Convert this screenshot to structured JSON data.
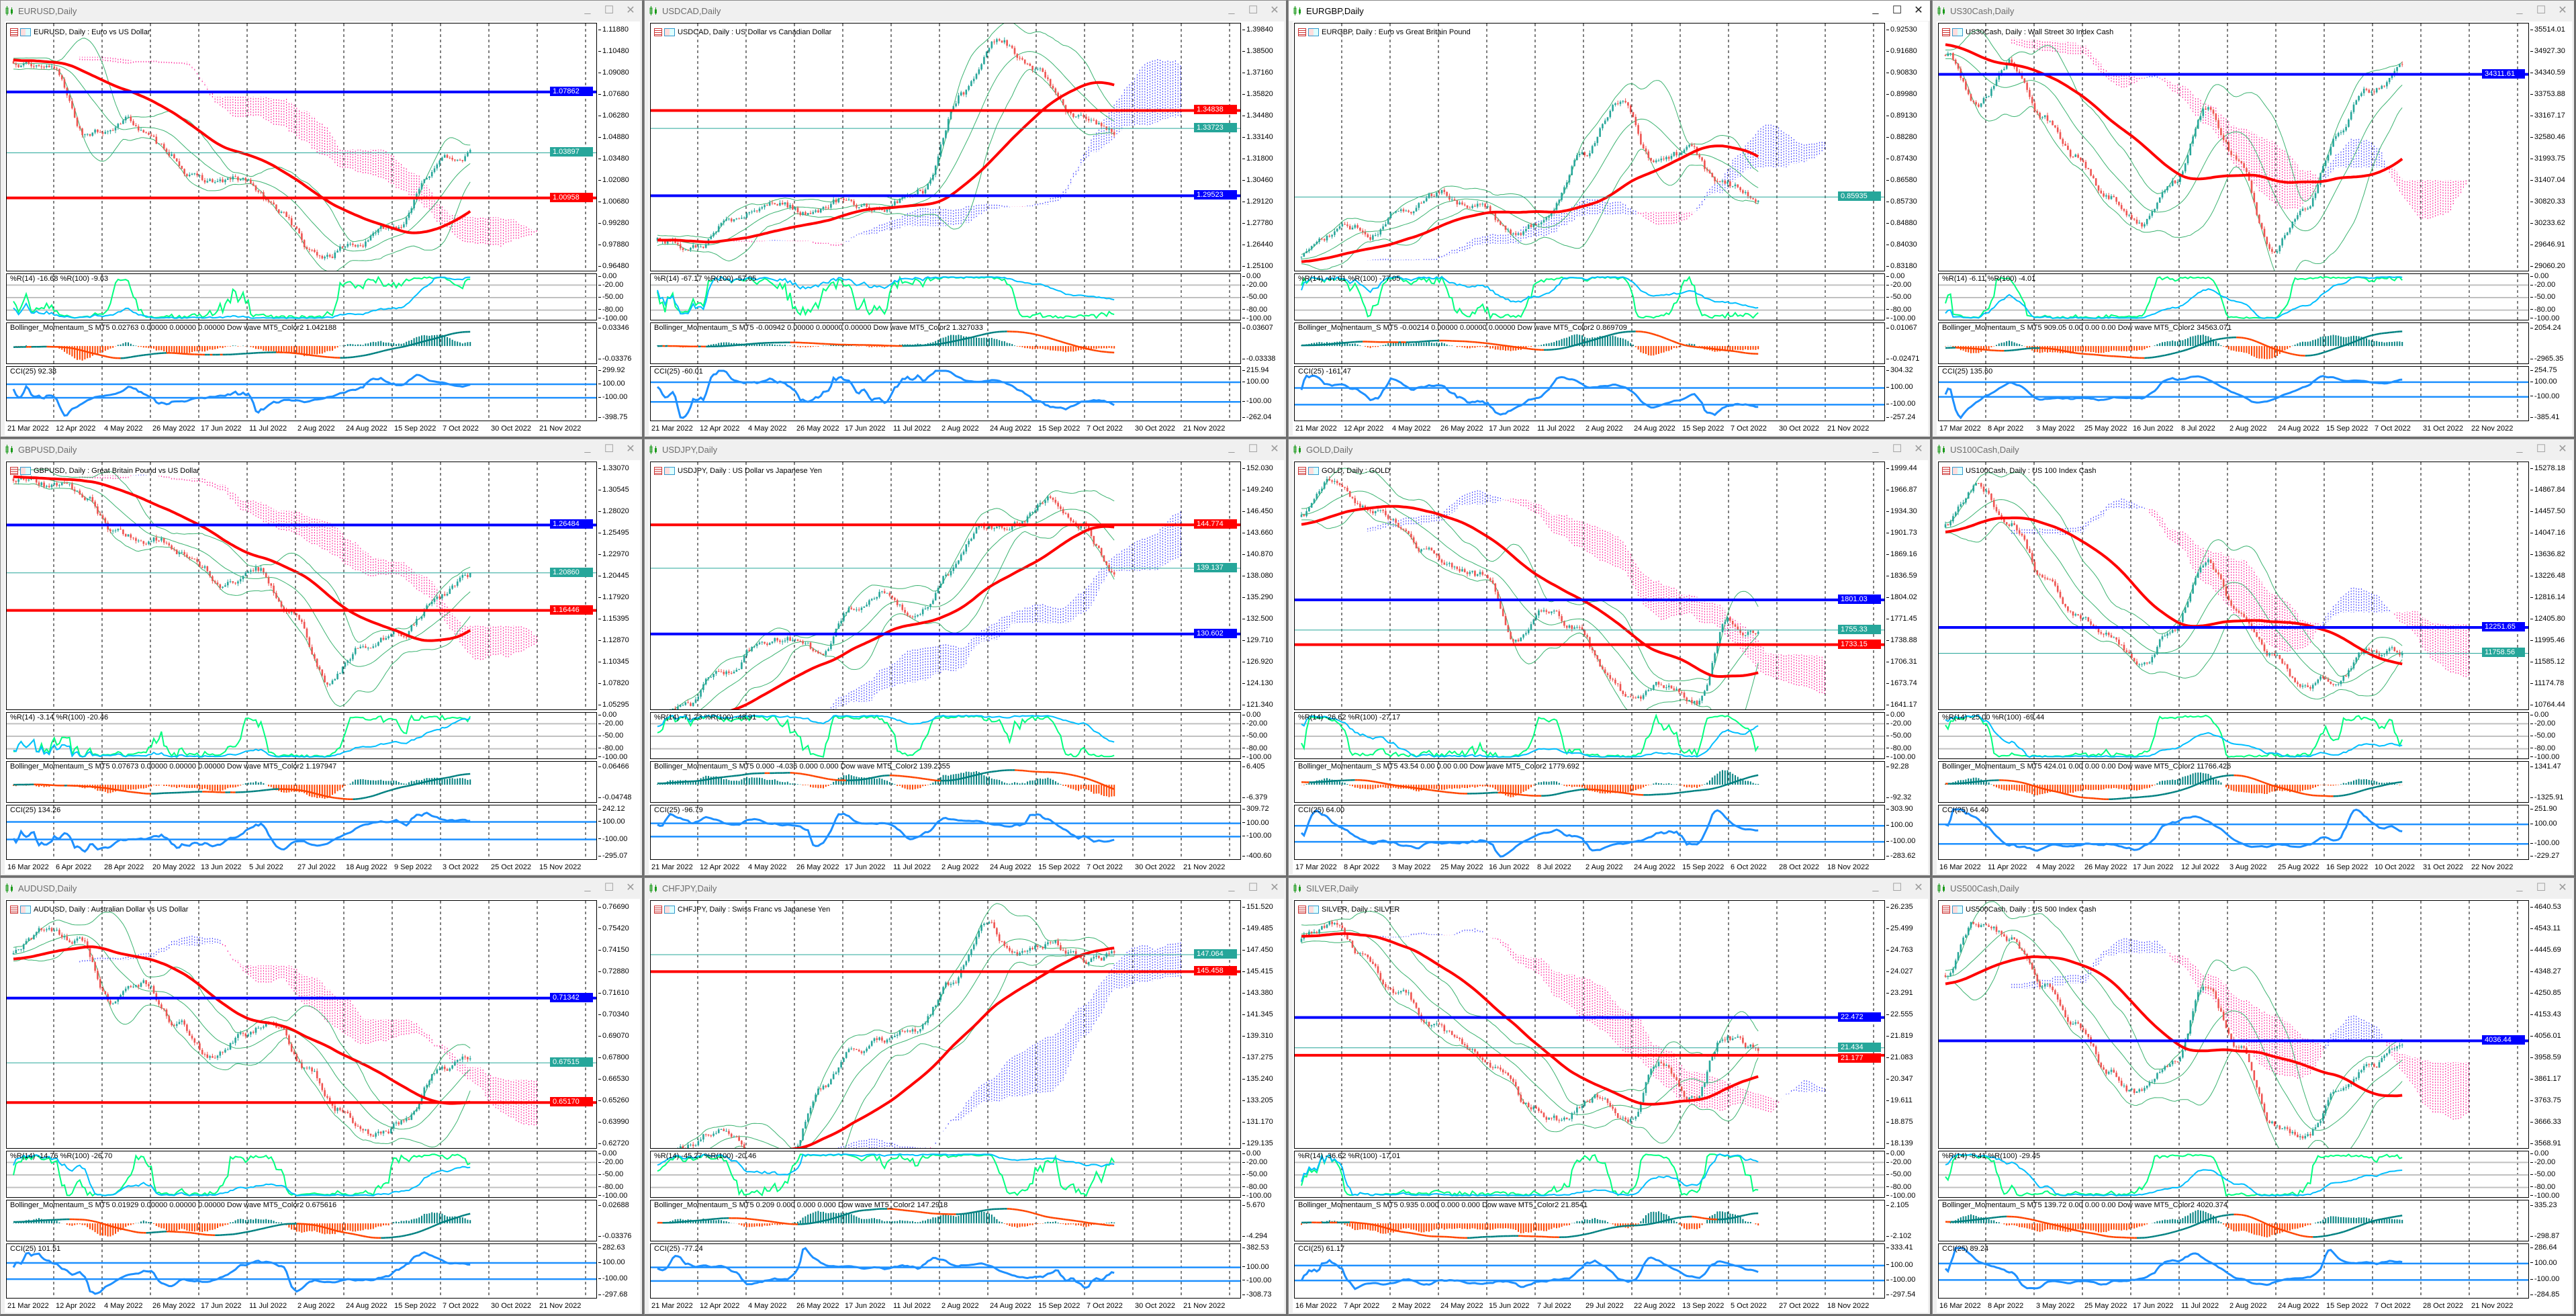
{
  "colors": {
    "up": "#26a69a",
    "down": "#ef5350",
    "ma": "#ff0000",
    "bands": "#3cb371",
    "blue_line": "#0000ff",
    "red_line": "#ff0000",
    "current": "#26a69a",
    "cci": "#1e90ff",
    "wr_fast": "#00ff7f",
    "wr_slow": "#00bfff",
    "bm_pos": "#008080",
    "bm_neg": "#ff4500",
    "cloud_bull": "#3333ff",
    "cloud_bear": "#ff1493"
  },
  "windows": [
    {
      "title": "EURUSD,Daily",
      "chart_label": "EURUSD, Daily : Euro vs US Dollar",
      "active": false,
      "price_ticks": [
        "1.11880",
        "1.10480",
        "1.09080",
        "1.07680",
        "1.06280",
        "1.04880",
        "1.03480",
        "1.02080",
        "1.00680",
        "0.99280",
        "0.97880",
        "0.96480"
      ],
      "lines": {
        "blue": "1.07862",
        "current": "1.03897",
        "red": "1.00958"
      },
      "wr_label": "%R(14) -16.68 %R(100) -9.63",
      "wr_axis": [
        "0.00",
        "-20.00",
        "-50.00",
        "-80.00",
        "-100.00"
      ],
      "bm_label": "Bollinger_Momentaum_S MT5 0.02763 0.00000 0.00000 0.00000 Dow wave MT5_Color2 1.042188",
      "bm_axis": [
        "0.03346",
        "-0.03376"
      ],
      "cci_label": "CCI(25) 92.38",
      "cci_axis": [
        "299.92",
        "100.00",
        "-100.00",
        "-398.75"
      ],
      "dates": [
        "21 Mar 2022",
        "12 Apr 2022",
        "4 May 2022",
        "26 May 2022",
        "17 Jun 2022",
        "11 Jul 2022",
        "2 Aug 2022",
        "24 Aug 2022",
        "15 Sep 2022",
        "7 Oct 2022",
        "30 Oct 2022",
        "21 Nov 2022"
      ],
      "trend": [
        1.1,
        1.09,
        1.05,
        1.06,
        1.04,
        1.02,
        1.02,
        1.0,
        0.97,
        0.98,
        0.99,
        1.03,
        1.039
      ]
    },
    {
      "title": "USDCAD,Daily",
      "chart_label": "USDCAD, Daily : US Dollar vs Canadian Dollar",
      "active": false,
      "price_ticks": [
        "1.39840",
        "1.38500",
        "1.37160",
        "1.35820",
        "1.34480",
        "1.33140",
        "1.31800",
        "1.30460",
        "1.29120",
        "1.27780",
        "1.26440",
        "1.25100"
      ],
      "lines": {
        "blue": "1.29523",
        "current": "1.33723",
        "red": "1.34838"
      },
      "wr_label": "%R(14) -67.17 %R(100) -57.05",
      "wr_axis": [
        "0.00",
        "-20.00",
        "-50.00",
        "-80.00",
        "-100.00"
      ],
      "bm_label": "Bollinger_Momentaum_S MT5 -0.00942 0.00000 0.00000 0.00000 Dow wave MT5_Color2 1.327033",
      "bm_axis": [
        "0.03607",
        "-0.03338"
      ],
      "cci_label": "CCI(25) -60.01",
      "cci_axis": [
        "215.94",
        "100.00",
        "-100.00",
        "-262.04"
      ],
      "dates": [
        "21 Mar 2022",
        "12 Apr 2022",
        "4 May 2022",
        "26 May 2022",
        "17 Jun 2022",
        "11 Jul 2022",
        "2 Aug 2022",
        "24 Aug 2022",
        "15 Sep 2022",
        "7 Oct 2022",
        "30 Oct 2022",
        "21 Nov 2022"
      ],
      "trend": [
        1.265,
        1.262,
        1.28,
        1.29,
        1.285,
        1.292,
        1.285,
        1.3,
        1.36,
        1.39,
        1.37,
        1.345,
        1.337
      ]
    },
    {
      "title": "EURGBP,Daily",
      "chart_label": "EURGBP, Daily : Euro vs Great Britain Pound",
      "active": true,
      "price_ticks": [
        "0.92530",
        "0.91680",
        "0.90830",
        "0.89980",
        "0.89130",
        "0.88280",
        "0.87430",
        "0.86580",
        "0.85730",
        "0.84880",
        "0.84030",
        "0.83180"
      ],
      "lines": {
        "current": "0.85935"
      },
      "wr_label": "%R(14) -47.01 %R(100) -77.05",
      "wr_axis": [
        "0.00",
        "-20.00",
        "-50.00",
        "-80.00",
        "-100.00"
      ],
      "bm_label": "Bollinger_Momentaum_S MT5 -0.00214 0.00000 0.00000 0.00000 Dow wave MT5_Color2 0.869709",
      "bm_axis": [
        "0.01067",
        "-0.02471"
      ],
      "cci_label": "CCI(25) -161.47",
      "cci_axis": [
        "304.32",
        "100.00",
        "-100.00",
        "-257.24"
      ],
      "dates": [
        "21 Mar 2022",
        "12 Apr 2022",
        "4 May 2022",
        "26 May 2022",
        "17 Jun 2022",
        "11 Jul 2022",
        "2 Aug 2022",
        "24 Aug 2022",
        "15 Sep 2022",
        "7 Oct 2022",
        "30 Oct 2022",
        "21 Nov 2022"
      ],
      "trend": [
        0.836,
        0.845,
        0.846,
        0.855,
        0.86,
        0.856,
        0.845,
        0.85,
        0.875,
        0.898,
        0.872,
        0.876,
        0.862,
        0.859
      ]
    },
    {
      "title": "US30Cash,Daily",
      "chart_label": "US30Cash, Daily : Wall Street 30 Index Cash",
      "active": false,
      "price_ticks": [
        "35514.01",
        "34927.30",
        "34340.59",
        "33753.88",
        "33167.17",
        "32580.46",
        "31993.75",
        "31407.04",
        "30820.33",
        "30233.62",
        "29646.91",
        "29060.20"
      ],
      "lines": {
        "blue": "34311.61"
      },
      "wr_label": "%R(14) -6.11 %R(100) -4.01",
      "wr_axis": [
        "0.00",
        "-20.00",
        "-50.00",
        "-80.00",
        "-100.00"
      ],
      "bm_label": "Bollinger_Momentaum_S MT5 909.05 0.00 0.00 0.00 Dow wave MT5_Color2 34563.071",
      "bm_axis": [
        "2054.24",
        "-2965.35"
      ],
      "cci_label": "CCI(25) 135.60",
      "cci_axis": [
        "254.75",
        "100.00",
        "-100.00",
        "-385.41"
      ],
      "dates": [
        "17 Mar 2022",
        "8 Apr 2022",
        "3 May 2022",
        "25 May 2022",
        "16 Jun 2022",
        "8 Jul 2022",
        "2 Aug 2022",
        "24 Aug 2022",
        "15 Sep 2022",
        "7 Oct 2022",
        "31 Oct 2022",
        "22 Nov 2022"
      ],
      "trend": [
        34800,
        33500,
        34600,
        33000,
        32000,
        31000,
        30200,
        31500,
        33400,
        32000,
        29600,
        30500,
        32600,
        33800,
        34300
      ]
    },
    {
      "title": "GBPUSD,Daily",
      "chart_label": "GBPUSD, Daily : Great Britain Pound vs US Dollar",
      "active": false,
      "price_ticks": [
        "1.33070",
        "1.30545",
        "1.28020",
        "1.25495",
        "1.22970",
        "1.20445",
        "1.17920",
        "1.15395",
        "1.12870",
        "1.10345",
        "1.07820",
        "1.05295"
      ],
      "lines": {
        "blue": "1.26484",
        "current": "1.20860",
        "red": "1.16446"
      },
      "wr_label": "%R(14) -3.14 %R(100) -20.46",
      "wr_axis": [
        "0.00",
        "-20.00",
        "-50.00",
        "-80.00",
        "-100.00"
      ],
      "bm_label": "Bollinger_Momentaum_S MT5 0.07673 0.00000 0.00000 0.00000 Dow wave MT5_Color2 1.197947",
      "bm_axis": [
        "0.06466",
        "-0.04748"
      ],
      "cci_label": "CCI(25) 134.26",
      "cci_axis": [
        "242.12",
        "100.00",
        "-100.00",
        "-295.07"
      ],
      "dates": [
        "16 Mar 2022",
        "6 Apr 2022",
        "28 Apr 2022",
        "20 May 2022",
        "13 Jun 2022",
        "5 Jul 2022",
        "27 Jul 2022",
        "18 Aug 2022",
        "9 Sep 2022",
        "3 Oct 2022",
        "25 Oct 2022",
        "15 Nov 2022"
      ],
      "trend": [
        1.32,
        1.31,
        1.3,
        1.25,
        1.25,
        1.225,
        1.2,
        1.21,
        1.16,
        1.08,
        1.13,
        1.14,
        1.17,
        1.209
      ]
    },
    {
      "title": "USDJPY,Daily",
      "chart_label": "USDJPY, Daily : US Dollar vs Japanese Yen",
      "active": false,
      "price_ticks": [
        "152.030",
        "149.240",
        "146.450",
        "143.660",
        "140.870",
        "138.080",
        "135.290",
        "132.500",
        "129.710",
        "126.920",
        "124.130",
        "121.340"
      ],
      "lines": {
        "blue": "130.602",
        "current": "139.137",
        "red": "144.774"
      },
      "wr_label": "%R(14) -71.23 %R(100) -48.91",
      "wr_axis": [
        "0.00",
        "-20.00",
        "-50.00",
        "-80.00",
        "-100.00"
      ],
      "bm_label": "Bollinger_Momentaum_S MT5 0.000 -4.036 0.000 0.000 Dow wave MT5_Color2 139.2355",
      "bm_axis": [
        "6.405",
        "-6.379"
      ],
      "cci_label": "CCI(25) -96.79",
      "cci_axis": [
        "309.72",
        "100.00",
        "-100.00",
        "-400.60"
      ],
      "dates": [
        "21 Mar 2022",
        "12 Apr 2022",
        "4 May 2022",
        "26 May 2022",
        "17 Jun 2022",
        "11 Jul 2022",
        "2 Aug 2022",
        "24 Aug 2022",
        "15 Sep 2022",
        "7 Oct 2022",
        "30 Oct 2022",
        "21 Nov 2022"
      ],
      "trend": [
        119,
        122,
        126,
        129,
        130,
        128,
        134,
        136,
        133,
        139,
        144,
        145,
        149,
        146,
        139
      ]
    },
    {
      "title": "GOLD,Daily",
      "chart_label": "GOLD, Daily : GOLD",
      "active": false,
      "price_ticks": [
        "1999.44",
        "1966.87",
        "1934.30",
        "1901.73",
        "1869.16",
        "1836.59",
        "1804.02",
        "1771.45",
        "1738.88",
        "1706.31",
        "1673.74",
        "1641.17"
      ],
      "lines": {
        "blue": "1801.03",
        "current": "1755.33",
        "red": "1733.15"
      },
      "wr_label": "%R(14) -26.62 %R(100) -27.17",
      "wr_axis": [
        "0.00",
        "-20.00",
        "-50.00",
        "-80.00",
        "-100.00"
      ],
      "bm_label": "Bollinger_Momentaum_S MT5 43.54 0.00 0.00 0.00 Dow wave MT5_Color2 1779.692",
      "bm_axis": [
        "92.28",
        "-92.32"
      ],
      "cci_label": "CCI(25) 64.00",
      "cci_axis": [
        "303.90",
        "100.00",
        "-100.00",
        "-283.62"
      ],
      "dates": [
        "17 Mar 2022",
        "8 Apr 2022",
        "3 May 2022",
        "25 May 2022",
        "16 Jun 2022",
        "8 Jul 2022",
        "2 Aug 2022",
        "24 Aug 2022",
        "15 Sep 2022",
        "6 Oct 2022",
        "28 Oct 2022",
        "18 Nov 2022"
      ],
      "trend": [
        1930,
        1985,
        1940,
        1920,
        1880,
        1850,
        1835,
        1745,
        1780,
        1760,
        1690,
        1645,
        1670,
        1640,
        1765,
        1755
      ]
    },
    {
      "title": "US100Cash,Daily",
      "chart_label": "US100Cash, Daily : US 100 Index Cash",
      "active": false,
      "price_ticks": [
        "15278.18",
        "14867.84",
        "14457.50",
        "14047.16",
        "13636.82",
        "13226.48",
        "12816.14",
        "12405.80",
        "11995.46",
        "11585.12",
        "11174.78",
        "10764.44"
      ],
      "lines": {
        "blue": "12251.65",
        "current": "11758.56"
      },
      "wr_label": "%R(14) -25.00 %R(100) -69.44",
      "wr_axis": [
        "0.00",
        "-20.00",
        "-50.00",
        "-80.00",
        "-100.00"
      ],
      "bm_label": "Bollinger_Momentaum_S MT5 424.01 0.00 0.00 0.00 Dow wave MT5_Color2 11766.426",
      "bm_axis": [
        "1341.47",
        "-1325.91"
      ],
      "cci_label": "CCI(25) 64.40",
      "cci_axis": [
        "251.90",
        "100.00",
        "-100.00",
        "-229.27"
      ],
      "dates": [
        "16 Mar 2022",
        "11 Apr 2022",
        "4 May 2022",
        "26 May 2022",
        "17 Jun 2022",
        "12 Jul 2022",
        "3 Aug 2022",
        "25 Aug 2022",
        "16 Sep 2022",
        "10 Oct 2022",
        "31 Oct 2022",
        "22 Nov 2022"
      ],
      "trend": [
        14300,
        15000,
        14300,
        13200,
        12400,
        12000,
        11600,
        12300,
        13500,
        12500,
        11800,
        11050,
        11200,
        11800,
        11758
      ]
    },
    {
      "title": "AUDUSD,Daily",
      "chart_label": "AUDUSD, Daily : Australian Dollar vs US Dollar",
      "active": false,
      "price_ticks": [
        "0.76690",
        "0.75420",
        "0.74150",
        "0.72880",
        "0.71610",
        "0.70340",
        "0.69070",
        "0.67800",
        "0.66530",
        "0.65260",
        "0.63990",
        "0.62720"
      ],
      "lines": {
        "blue": "0.71342",
        "current": "0.67515",
        "red": "0.65170"
      },
      "wr_label": "%R(14) -14.76 %R(100) -26.70",
      "wr_axis": [
        "0.00",
        "-20.00",
        "-50.00",
        "-80.00",
        "-100.00"
      ],
      "bm_label": "Bollinger_Momentaum_S MT5 0.01929 0.00000 0.00000 0.00000 Dow wave MT5_Color2 0.675616",
      "bm_axis": [
        "0.02688",
        "-0.03376"
      ],
      "cci_label": "CCI(25) 101.51",
      "cci_axis": [
        "282.63",
        "100.00",
        "-100.00",
        "-297.68"
      ],
      "dates": [
        "21 Mar 2022",
        "12 Apr 2022",
        "4 May 2022",
        "26 May 2022",
        "17 Jun 2022",
        "11 Jul 2022",
        "2 Aug 2022",
        "24 Aug 2022",
        "15 Sep 2022",
        "7 Oct 2022",
        "30 Oct 2022",
        "21 Nov 2022"
      ],
      "trend": [
        0.74,
        0.752,
        0.745,
        0.71,
        0.72,
        0.7,
        0.68,
        0.692,
        0.7,
        0.67,
        0.65,
        0.632,
        0.64,
        0.668,
        0.675
      ]
    },
    {
      "title": "CHFJPY,Daily",
      "chart_label": "CHFJPY, Daily : Swiss Franc vs Japanese Yen",
      "active": false,
      "price_ticks": [
        "151.520",
        "149.485",
        "147.450",
        "145.415",
        "143.380",
        "141.345",
        "139.310",
        "137.275",
        "135.240",
        "133.205",
        "131.170",
        "129.135"
      ],
      "lines": {
        "current": "147.064",
        "red": "145.458"
      },
      "wr_label": "%R(14) -45.27 %R(100) -20.46",
      "wr_axis": [
        "0.00",
        "-20.00",
        "-50.00",
        "-80.00",
        "-100.00"
      ],
      "bm_label": "Bollinger_Momentaum_S MT5 0.209 0.000 0.000 0.000 Dow wave MT5_Color2 147.2918",
      "bm_axis": [
        "5.670",
        "-4.294"
      ],
      "cci_label": "CCI(25) -77.24",
      "cci_axis": [
        "382.53",
        "100.00",
        "-100.00",
        "-308.73"
      ],
      "dates": [
        "21 Mar 2022",
        "12 Apr 2022",
        "4 May 2022",
        "26 May 2022",
        "17 Jun 2022",
        "11 Jul 2022",
        "2 Aug 2022",
        "24 Aug 2022",
        "15 Sep 2022",
        "7 Oct 2022",
        "30 Oct 2022",
        "21 Nov 2022"
      ],
      "trend": [
        127,
        129,
        131,
        129,
        128,
        134,
        138,
        139,
        140,
        144,
        150,
        147,
        148,
        146.5,
        147
      ]
    },
    {
      "title": "SILVER,Daily",
      "chart_label": "SILVER, Daily : SILVER",
      "active": false,
      "price_ticks": [
        "26.235",
        "25.499",
        "24.763",
        "24.027",
        "23.291",
        "22.555",
        "21.819",
        "21.083",
        "20.347",
        "19.611",
        "18.875",
        "18.139"
      ],
      "lines": {
        "blue": "22.472",
        "current": "21.434",
        "red": "21.177"
      },
      "wr_label": "%R(14) -36.62 %R(100) -17.01",
      "wr_axis": [
        "0.00",
        "-20.00",
        "-50.00",
        "-80.00",
        "-100.00"
      ],
      "bm_label": "Bollinger_Momentaum_S MT5 0.935 0.000 0.000 0.000 Dow wave MT5_Color2 21.8541",
      "bm_axis": [
        "2.105",
        "-2.102"
      ],
      "cci_label": "CCI(25) 61.17",
      "cci_axis": [
        "333.41",
        "100.00",
        "-100.00",
        "-297.54"
      ],
      "dates": [
        "16 Mar 2022",
        "7 Apr 2022",
        "2 May 2022",
        "24 May 2022",
        "15 Jun 2022",
        "7 Jul 2022",
        "29 Jul 2022",
        "22 Aug 2022",
        "13 Sep 2022",
        "5 Oct 2022",
        "27 Oct 2022",
        "18 Nov 2022"
      ],
      "trend": [
        25.3,
        25.8,
        24.5,
        23.2,
        22.3,
        21.5,
        20.5,
        19.3,
        19.0,
        19.8,
        19.0,
        21.0,
        19.8,
        21.9,
        21.4
      ]
    },
    {
      "title": "US500Cash,Daily",
      "chart_label": "US500Cash, Daily : US 500 Index Cash",
      "active": false,
      "price_ticks": [
        "4640.53",
        "4543.11",
        "4445.69",
        "4348.27",
        "4250.85",
        "4153.43",
        "4056.01",
        "3958.59",
        "3861.17",
        "3763.75",
        "3666.33",
        "3568.91"
      ],
      "lines": {
        "blue": "4036.44"
      },
      "wr_label": "%R(14) -8.41 %R(100) -29.45",
      "wr_axis": [
        "0.00",
        "-20.00",
        "-50.00",
        "-80.00",
        "-100.00"
      ],
      "bm_label": "Bollinger_Momentaum_S MT5 139.72 0.00 0.00 0.00 Dow wave MT5_Color2 4020.374",
      "bm_axis": [
        "335.23",
        "-298.87"
      ],
      "cci_label": "CCI(25) 89.24",
      "cci_axis": [
        "286.64",
        "100.00",
        "-100.00",
        "-284.85"
      ],
      "dates": [
        "16 Mar 2022",
        "8 Apr 2022",
        "3 May 2022",
        "25 May 2022",
        "17 Jun 2022",
        "11 Jul 2022",
        "2 Aug 2022",
        "24 Aug 2022",
        "15 Sep 2022",
        "7 Oct 2022",
        "28 Oct 2022",
        "21 Nov 2022"
      ],
      "trend": [
        4350,
        4560,
        4500,
        4300,
        4100,
        3900,
        3800,
        3950,
        4300,
        4000,
        3650,
        3600,
        3800,
        3900,
        4036
      ]
    }
  ],
  "window_buttons": {
    "minimize": "_",
    "maximize": "☐",
    "close": "✕"
  }
}
